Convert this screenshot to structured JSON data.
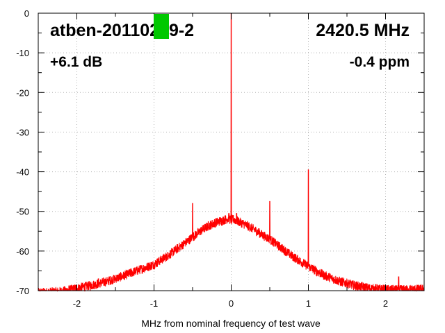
{
  "chart_data": {
    "type": "line",
    "title": "atben-20110219-2",
    "frequency_label": "2420.5 MHz",
    "gain_label": "+6.1 dB",
    "offset_label": "-0.4 ppm",
    "xlabel": "MHz from nominal frequency of test wave",
    "ylabel": "",
    "xlim": [
      -2.5,
      2.5
    ],
    "ylim": [
      -70,
      0
    ],
    "xticks": [
      -2,
      -1,
      0,
      1,
      2
    ],
    "xtick_labels": [
      "-2",
      "-1",
      "0",
      "1",
      "2"
    ],
    "yticks": [
      0,
      -10,
      -20,
      -30,
      -40,
      -50,
      -60,
      -70
    ],
    "ytick_labels": [
      "0",
      "-10",
      "-20",
      "-30",
      "-40",
      "-50",
      "-60",
      "-70"
    ],
    "grid": true,
    "status_marker_color": "#00c800",
    "series": [
      {
        "color": "#ff0000",
        "noise_floor_envelope": {
          "x": [
            -2.5,
            -2.2,
            -2.0,
            -1.8,
            -1.6,
            -1.4,
            -1.2,
            -1.0,
            -0.8,
            -0.6,
            -0.5,
            -0.4,
            -0.3,
            -0.2,
            -0.1,
            -0.03,
            0.0,
            0.03,
            0.1,
            0.2,
            0.3,
            0.4,
            0.5,
            0.6,
            0.8,
            1.0,
            1.2,
            1.4,
            1.6,
            1.8,
            2.0,
            2.2,
            2.5
          ],
          "y": [
            -70.5,
            -70.2,
            -69.4,
            -68.6,
            -67.6,
            -66.3,
            -64.8,
            -63.4,
            -60.9,
            -58.0,
            -56.5,
            -55.0,
            -53.7,
            -52.8,
            -52.2,
            -51.8,
            -52.3,
            -52.0,
            -52.6,
            -53.5,
            -54.6,
            -55.9,
            -57.0,
            -58.5,
            -61.4,
            -63.9,
            -66.1,
            -67.6,
            -68.7,
            -69.4,
            -69.7,
            -69.8,
            -69.6
          ]
        },
        "spurs": [
          {
            "x": 0.0,
            "y": 0.0
          },
          {
            "x": 1.0,
            "y": -39.5
          },
          {
            "x": -0.5,
            "y": -48.0
          },
          {
            "x": 0.5,
            "y": -47.5
          },
          {
            "x": 0.0,
            "y": -42.0
          },
          {
            "x": -0.03,
            "y": -50.5
          },
          {
            "x": 0.07,
            "y": -50.5
          },
          {
            "x": -1.72,
            "y": -67.0
          },
          {
            "x": 2.17,
            "y": -66.5
          }
        ]
      }
    ]
  }
}
